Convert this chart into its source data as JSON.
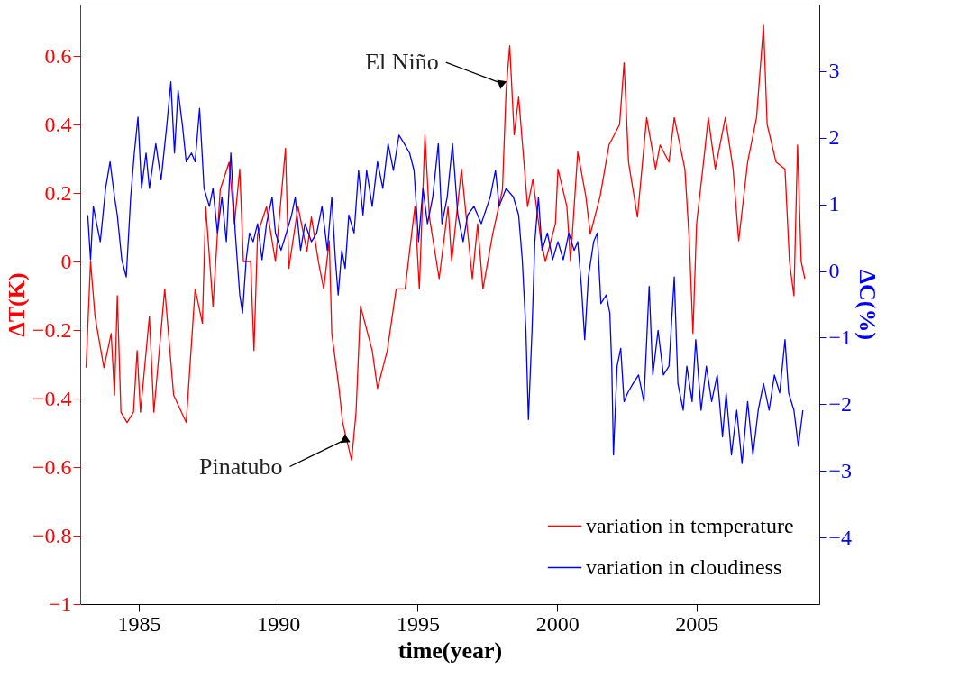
{
  "chart_data": {
    "type": "line",
    "xlabel": "time(year)",
    "ylabel": "ΔT(K)",
    "y2label": "ΔC(%)",
    "xlim": [
      1982.9,
      2009.4
    ],
    "ylim": [
      -1,
      0.75
    ],
    "y2lim": [
      -5,
      4
    ],
    "xticks": [
      1985,
      1990,
      1995,
      2000,
      2005
    ],
    "yticks": [
      -1,
      -0.8,
      -0.6,
      -0.4,
      -0.2,
      0,
      0.2,
      0.4,
      0.6
    ],
    "y2ticks": [
      -4,
      -3,
      -2,
      -1,
      0,
      1,
      2,
      3
    ],
    "grid": false,
    "legend": "bottom right",
    "marker": "none",
    "line_style": "solid",
    "annotations": [
      {
        "text": "El Niño",
        "x": 1998.0,
        "y": 0.52
      },
      {
        "text": "Pinatubo",
        "x": 1992.4,
        "y": -0.52
      }
    ],
    "series": [
      {
        "name": "variation in temperature",
        "color": "#ff0000",
        "x": [
          1983.11,
          1983.27,
          1983.43,
          1983.75,
          1984.01,
          1984.13,
          1984.23,
          1984.36,
          1984.58,
          1984.81,
          1984.94,
          1985.06,
          1985.38,
          1985.54,
          1985.93,
          1986.25,
          1986.7,
          1987.02,
          1987.28,
          1987.4,
          1987.66,
          1987.92,
          1988.24,
          1988.43,
          1988.62,
          1988.75,
          1989.01,
          1989.13,
          1989.26,
          1989.58,
          1989.9,
          1990.26,
          1990.38,
          1990.71,
          1991.03,
          1991.19,
          1991.44,
          1991.63,
          1991.83,
          1991.92,
          1992.18,
          1992.31,
          1992.63,
          1992.79,
          1992.95,
          1993.37,
          1993.56,
          1993.91,
          1994.23,
          1994.55,
          1994.9,
          1995.06,
          1995.26,
          1995.42,
          1995.77,
          1996.09,
          1996.22,
          1996.57,
          1996.96,
          1997.15,
          1997.34,
          1997.69,
          1998.04,
          1998.17,
          1998.3,
          1998.46,
          1998.62,
          1998.94,
          1999.13,
          1999.42,
          1999.58,
          1999.94,
          2000.03,
          2000.35,
          2000.48,
          2000.74,
          2001.03,
          2001.19,
          2001.54,
          2001.86,
          2002.24,
          2002.4,
          2002.56,
          2002.88,
          2003.21,
          2003.53,
          2003.69,
          2004.01,
          2004.2,
          2004.58,
          2004.74,
          2004.87,
          2005.0,
          2005.29,
          2005.42,
          2005.67,
          2006.03,
          2006.31,
          2006.51,
          2006.83,
          2007.15,
          2007.4,
          2007.53,
          2007.85,
          2008.17,
          2008.33,
          2008.49,
          2008.62,
          2008.75,
          2008.88
        ],
        "values": [
          -0.31,
          0.0,
          -0.16,
          -0.31,
          -0.21,
          -0.39,
          -0.1,
          -0.44,
          -0.47,
          -0.44,
          -0.26,
          -0.44,
          -0.16,
          -0.44,
          -0.08,
          -0.39,
          -0.47,
          -0.08,
          -0.18,
          0.16,
          -0.13,
          0.21,
          0.29,
          0.11,
          0.27,
          0.0,
          0.0,
          -0.26,
          0.08,
          0.16,
          0.0,
          0.33,
          -0.02,
          0.16,
          0.03,
          0.13,
          0.0,
          -0.08,
          0.06,
          -0.21,
          -0.37,
          -0.47,
          -0.58,
          -0.44,
          -0.13,
          -0.26,
          -0.37,
          -0.26,
          -0.08,
          -0.08,
          0.16,
          -0.08,
          0.37,
          0.13,
          -0.05,
          0.16,
          0.0,
          0.27,
          -0.05,
          0.11,
          -0.08,
          0.08,
          0.21,
          0.5,
          0.63,
          0.37,
          0.48,
          0.16,
          0.24,
          0.06,
          0.0,
          0.11,
          0.27,
          0.16,
          0.0,
          0.32,
          0.19,
          0.08,
          0.19,
          0.34,
          0.4,
          0.58,
          0.29,
          0.13,
          0.42,
          0.27,
          0.34,
          0.29,
          0.42,
          0.27,
          0.06,
          -0.21,
          0.11,
          0.32,
          0.42,
          0.27,
          0.42,
          0.27,
          0.06,
          0.29,
          0.42,
          0.69,
          0.4,
          0.29,
          0.27,
          0.0,
          -0.1,
          0.34,
          0.0,
          -0.05
        ]
      },
      {
        "name": "variation in cloudiness",
        "color": "#0000ff",
        "axis": "y2",
        "x": [
          1983.17,
          1983.27,
          1983.37,
          1983.49,
          1983.62,
          1983.81,
          1983.97,
          1984.13,
          1984.23,
          1984.39,
          1984.55,
          1984.71,
          1984.84,
          1984.97,
          1985.1,
          1985.26,
          1985.38,
          1985.61,
          1985.8,
          1986.0,
          1986.15,
          1986.28,
          1986.41,
          1986.57,
          1986.7,
          1986.89,
          1987.02,
          1987.18,
          1987.34,
          1987.53,
          1987.66,
          1987.82,
          1987.98,
          1988.14,
          1988.3,
          1988.46,
          1988.62,
          1988.72,
          1988.85,
          1988.97,
          1989.1,
          1989.26,
          1989.42,
          1989.58,
          1989.78,
          1989.9,
          1990.1,
          1990.29,
          1990.48,
          1990.61,
          1990.8,
          1990.96,
          1991.19,
          1991.38,
          1991.57,
          1991.76,
          1991.92,
          1992.05,
          1992.15,
          1992.28,
          1992.4,
          1992.53,
          1992.72,
          1992.88,
          1993.04,
          1993.17,
          1993.37,
          1993.56,
          1993.75,
          1993.94,
          1994.13,
          1994.33,
          1994.52,
          1994.71,
          1994.87,
          1995.03,
          1995.19,
          1995.35,
          1995.54,
          1995.74,
          1995.87,
          1996.06,
          1996.25,
          1996.44,
          1996.63,
          1996.79,
          1997.02,
          1997.28,
          1997.6,
          1997.79,
          1997.92,
          1998.17,
          1998.43,
          1998.62,
          1998.75,
          1998.88,
          1998.97,
          1999.1,
          1999.2,
          1999.33,
          1999.46,
          1999.65,
          1999.84,
          2000.03,
          2000.22,
          2000.42,
          2000.61,
          2000.74,
          2000.87,
          2000.99,
          2001.12,
          2001.31,
          2001.44,
          2001.57,
          2001.76,
          2001.89,
          2001.96,
          2002.02,
          2002.15,
          2002.28,
          2002.4,
          2002.53,
          2002.72,
          2002.92,
          2003.11,
          2003.3,
          2003.43,
          2003.62,
          2003.81,
          2004.01,
          2004.2,
          2004.33,
          2004.52,
          2004.65,
          2004.84,
          2004.97,
          2005.16,
          2005.35,
          2005.54,
          2005.74,
          2005.93,
          2006.06,
          2006.25,
          2006.44,
          2006.63,
          2006.83,
          2007.02,
          2007.21,
          2007.4,
          2007.6,
          2007.79,
          2007.98,
          2008.17,
          2008.3,
          2008.49,
          2008.65,
          2008.81
        ],
        "values": [
          0.84,
          0.17,
          0.97,
          0.71,
          0.44,
          1.24,
          1.64,
          1.11,
          0.84,
          0.17,
          -0.09,
          1.11,
          1.77,
          2.31,
          1.24,
          1.77,
          1.24,
          1.91,
          1.37,
          2.17,
          2.84,
          1.77,
          2.71,
          2.17,
          1.64,
          1.77,
          1.64,
          2.44,
          1.24,
          0.97,
          1.24,
          0.57,
          1.11,
          0.44,
          1.77,
          0.57,
          -0.36,
          -0.63,
          0.17,
          0.57,
          0.44,
          0.71,
          0.17,
          0.71,
          1.11,
          0.57,
          0.31,
          0.57,
          0.84,
          1.11,
          0.31,
          0.71,
          0.44,
          0.57,
          0.97,
          0.31,
          1.11,
          0.17,
          -0.36,
          0.31,
          0.04,
          0.84,
          0.57,
          1.51,
          0.84,
          1.51,
          0.97,
          1.64,
          1.24,
          1.91,
          1.51,
          2.04,
          1.91,
          1.77,
          1.51,
          0.44,
          1.24,
          0.71,
          1.11,
          1.91,
          0.71,
          1.11,
          1.91,
          0.84,
          0.44,
          0.84,
          0.97,
          0.71,
          1.11,
          1.51,
          0.97,
          1.24,
          1.11,
          0.84,
          0.17,
          -0.89,
          -2.23,
          -0.89,
          0.44,
          1.11,
          0.31,
          0.57,
          0.17,
          0.44,
          0.17,
          0.57,
          0.31,
          0.44,
          -0.23,
          -1.03,
          -0.09,
          0.44,
          0.57,
          -0.49,
          -0.36,
          -0.63,
          -1.43,
          -2.76,
          -1.43,
          -1.16,
          -1.96,
          -1.83,
          -1.69,
          -1.56,
          -1.96,
          -0.23,
          -1.56,
          -0.89,
          -1.56,
          -1.43,
          -0.09,
          -1.69,
          -2.09,
          -1.43,
          -1.96,
          -1.03,
          -2.09,
          -1.43,
          -1.96,
          -1.56,
          -2.49,
          -1.83,
          -2.76,
          -2.09,
          -2.89,
          -1.96,
          -2.76,
          -2.09,
          -1.69,
          -2.09,
          -1.56,
          -1.83,
          -1.03,
          -1.83,
          -2.09,
          -2.63,
          -2.09
        ]
      }
    ]
  }
}
